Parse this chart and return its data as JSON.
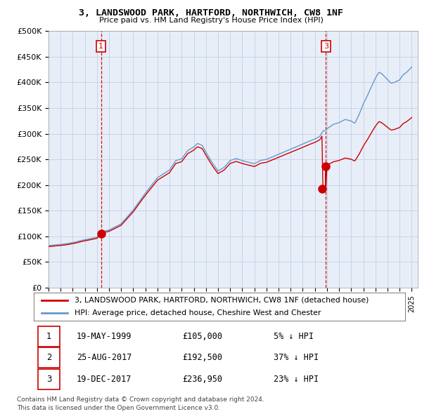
{
  "title": "3, LANDSWOOD PARK, HARTFORD, NORTHWICH, CW8 1NF",
  "subtitle": "Price paid vs. HM Land Registry's House Price Index (HPI)",
  "ylabel_ticks": [
    "£0",
    "£50K",
    "£100K",
    "£150K",
    "£200K",
    "£250K",
    "£300K",
    "£350K",
    "£400K",
    "£450K",
    "£500K"
  ],
  "ylim": [
    0,
    500000
  ],
  "property_color": "#cc0000",
  "hpi_color": "#6699cc",
  "vline_color": "#cc0000",
  "legend_property": "3, LANDSWOOD PARK, HARTFORD, NORTHWICH, CW8 1NF (detached house)",
  "legend_hpi": "HPI: Average price, detached house, Cheshire West and Chester",
  "transactions": [
    {
      "num": 1,
      "date": "19-MAY-1999",
      "price": 105000,
      "pct": "5%",
      "dir": "↓"
    },
    {
      "num": 2,
      "date": "25-AUG-2017",
      "price": 192500,
      "pct": "37%",
      "dir": "↓"
    },
    {
      "num": 3,
      "date": "19-DEC-2017",
      "price": 236950,
      "pct": "23%",
      "dir": "↓"
    }
  ],
  "footnote1": "Contains HM Land Registry data © Crown copyright and database right 2024.",
  "footnote2": "This data is licensed under the Open Government Licence v3.0.",
  "background_color": "#ffffff",
  "plot_bg_color": "#e8eef8",
  "grid_color": "#c8d4e8"
}
